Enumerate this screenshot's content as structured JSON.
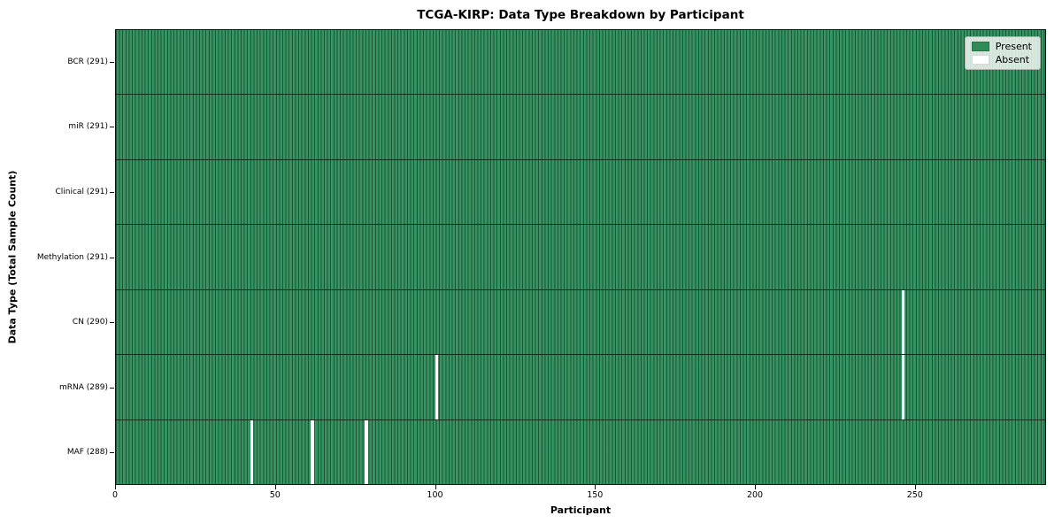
{
  "title": "TCGA-KIRP: Data Type Breakdown by Participant",
  "chart_data": {
    "type": "heatmap",
    "title": "TCGA-KIRP: Data Type Breakdown by Participant",
    "xlabel": "Participant",
    "ylabel": "Data Type (Total Sample Count)",
    "n_participants": 291,
    "xlim": [
      0,
      291
    ],
    "xticks": [
      0,
      50,
      100,
      150,
      200,
      250
    ],
    "grid": false,
    "rows": [
      {
        "label": "BCR (291)",
        "data_type": "BCR",
        "sample_count": 291,
        "absent_participants": []
      },
      {
        "label": "miR (291)",
        "data_type": "miR",
        "sample_count": 291,
        "absent_participants": []
      },
      {
        "label": "Clinical (291)",
        "data_type": "Clinical",
        "sample_count": 291,
        "absent_participants": []
      },
      {
        "label": "Methylation (291)",
        "data_type": "Methylation",
        "sample_count": 291,
        "absent_participants": []
      },
      {
        "label": "CN (290)",
        "data_type": "CN",
        "sample_count": 290,
        "absent_participants": [
          246
        ]
      },
      {
        "label": "mRNA (289)",
        "data_type": "mRNA",
        "sample_count": 289,
        "absent_participants": [
          100,
          246
        ]
      },
      {
        "label": "MAF (288)",
        "data_type": "MAF",
        "sample_count": 288,
        "absent_participants": [
          42,
          61,
          78
        ]
      }
    ],
    "legend": {
      "position": "upper right",
      "entries": [
        {
          "label": "Present",
          "color": "#2e8b57"
        },
        {
          "label": "Absent",
          "color": "#ffffff"
        }
      ]
    },
    "colors": {
      "present": "#2e8b57",
      "absent": "#ffffff",
      "bar_edge": "#1c5234",
      "row_separator": "#000000"
    }
  }
}
